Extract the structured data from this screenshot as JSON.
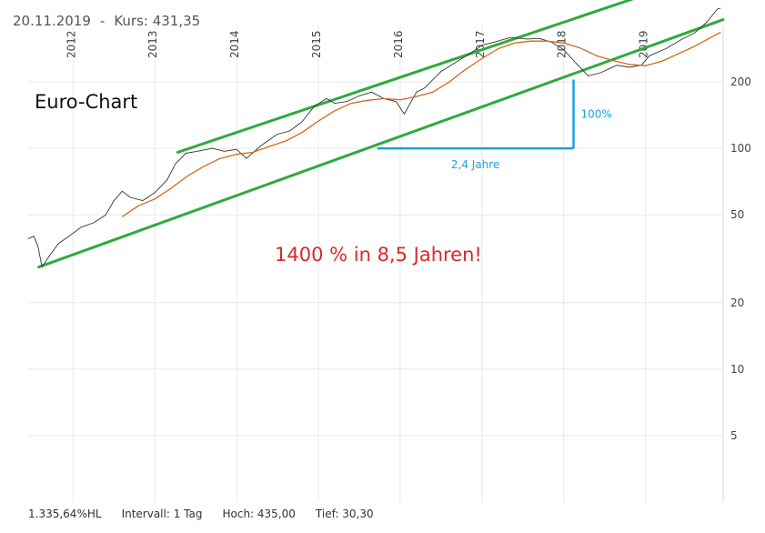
{
  "header": {
    "date": "20.11.2019",
    "separator": "-",
    "price_label": "Kurs: 431,35"
  },
  "footer": {
    "perf": "1.335,64%HL",
    "interval": "Intervall: 1 Tag",
    "high": "Hoch:  435,00",
    "low": "Tief:  30,30"
  },
  "colors": {
    "price": "#333333",
    "moving_average": "#d2691e",
    "channel": "#2eaa3e",
    "measure": "#1aa3d8",
    "headline": "#d62b2b",
    "grid": "#e8e8e8"
  },
  "chart_data": {
    "type": "line",
    "title": "Euro-Chart",
    "annotation": "1400 % in 8,5 Jahren!",
    "y_scale": "log",
    "ylim": [
      2.5,
      470
    ],
    "xlim": [
      2011.44,
      2019.95
    ],
    "x_ticks": [
      "2012",
      "2013",
      "2014",
      "2015",
      "2016",
      "2017",
      "2018",
      "2019"
    ],
    "y_ticks": [
      {
        "value": 5,
        "label": "5"
      },
      {
        "value": 10,
        "label": "10"
      },
      {
        "value": 20,
        "label": "20"
      },
      {
        "value": 50,
        "label": "50"
      },
      {
        "value": 100,
        "label": "100"
      },
      {
        "value": 200,
        "label": "200"
      }
    ],
    "grid": true,
    "series": [
      {
        "role": "price",
        "points": [
          [
            2011.45,
            39
          ],
          [
            2011.52,
            40
          ],
          [
            2011.57,
            36
          ],
          [
            2011.62,
            29
          ],
          [
            2011.72,
            33
          ],
          [
            2011.82,
            37
          ],
          [
            2011.95,
            40
          ],
          [
            2012.1,
            44
          ],
          [
            2012.25,
            46
          ],
          [
            2012.4,
            50
          ],
          [
            2012.5,
            58
          ],
          [
            2012.6,
            64
          ],
          [
            2012.7,
            60
          ],
          [
            2012.85,
            58
          ],
          [
            2013.0,
            63
          ],
          [
            2013.15,
            72
          ],
          [
            2013.25,
            85
          ],
          [
            2013.38,
            95
          ],
          [
            2013.52,
            97
          ],
          [
            2013.7,
            100
          ],
          [
            2013.85,
            97
          ],
          [
            2014.0,
            99
          ],
          [
            2014.12,
            90
          ],
          [
            2014.3,
            103
          ],
          [
            2014.5,
            116
          ],
          [
            2014.65,
            120
          ],
          [
            2014.8,
            132
          ],
          [
            2014.95,
            155
          ],
          [
            2015.1,
            168
          ],
          [
            2015.2,
            160
          ],
          [
            2015.35,
            163
          ],
          [
            2015.5,
            173
          ],
          [
            2015.65,
            180
          ],
          [
            2015.8,
            168
          ],
          [
            2015.95,
            163
          ],
          [
            2016.05,
            143
          ],
          [
            2016.2,
            180
          ],
          [
            2016.3,
            188
          ],
          [
            2016.5,
            223
          ],
          [
            2016.7,
            248
          ],
          [
            2016.85,
            268
          ],
          [
            2017.0,
            293
          ],
          [
            2017.15,
            303
          ],
          [
            2017.35,
            318
          ],
          [
            2017.55,
            313
          ],
          [
            2017.7,
            315
          ],
          [
            2017.85,
            303
          ],
          [
            2018.0,
            280
          ],
          [
            2018.15,
            243
          ],
          [
            2018.3,
            213
          ],
          [
            2018.45,
            220
          ],
          [
            2018.65,
            238
          ],
          [
            2018.8,
            233
          ],
          [
            2018.95,
            238
          ],
          [
            2019.05,
            263
          ],
          [
            2019.25,
            283
          ],
          [
            2019.45,
            313
          ],
          [
            2019.6,
            333
          ],
          [
            2019.75,
            373
          ],
          [
            2019.88,
            428
          ],
          [
            2019.92,
            431.35
          ]
        ]
      },
      {
        "role": "moving_average",
        "points": [
          [
            2012.6,
            49
          ],
          [
            2012.8,
            55
          ],
          [
            2013.0,
            59
          ],
          [
            2013.2,
            66
          ],
          [
            2013.4,
            75
          ],
          [
            2013.6,
            83
          ],
          [
            2013.8,
            90
          ],
          [
            2014.0,
            94
          ],
          [
            2014.2,
            96
          ],
          [
            2014.4,
            102
          ],
          [
            2014.6,
            108
          ],
          [
            2014.8,
            118
          ],
          [
            2015.0,
            133
          ],
          [
            2015.2,
            148
          ],
          [
            2015.4,
            160
          ],
          [
            2015.6,
            165
          ],
          [
            2015.8,
            168
          ],
          [
            2016.0,
            166
          ],
          [
            2016.2,
            172
          ],
          [
            2016.4,
            180
          ],
          [
            2016.6,
            200
          ],
          [
            2016.8,
            228
          ],
          [
            2017.0,
            255
          ],
          [
            2017.2,
            283
          ],
          [
            2017.4,
            300
          ],
          [
            2017.6,
            306
          ],
          [
            2017.8,
            306
          ],
          [
            2018.0,
            300
          ],
          [
            2018.2,
            285
          ],
          [
            2018.4,
            263
          ],
          [
            2018.6,
            250
          ],
          [
            2018.8,
            240
          ],
          [
            2019.0,
            237
          ],
          [
            2019.2,
            248
          ],
          [
            2019.4,
            268
          ],
          [
            2019.6,
            290
          ],
          [
            2019.8,
            318
          ],
          [
            2019.92,
            336
          ]
        ]
      }
    ],
    "channel_lines": [
      {
        "role": "lower",
        "from": [
          2011.58,
          29
        ],
        "to": [
          2019.95,
          383
        ]
      },
      {
        "role": "upper",
        "from": [
          2013.28,
          96
        ],
        "to": [
          2019.95,
          653
        ]
      }
    ],
    "measure": {
      "horizontal": {
        "from": [
          2015.72,
          100
        ],
        "to": [
          2018.12,
          100
        ],
        "label": "2,4 Jahre"
      },
      "vertical": {
        "from": [
          2018.12,
          100
        ],
        "to": [
          2018.12,
          205
        ],
        "label": "100%"
      }
    }
  }
}
